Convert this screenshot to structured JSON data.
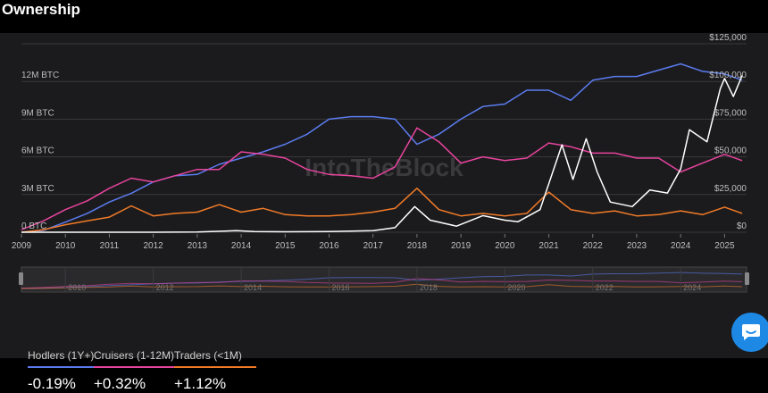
{
  "header": {
    "title": "Ownership"
  },
  "watermark": "IntoTheBlock",
  "legend": [
    {
      "label": "Hodlers (1Y+)",
      "change": "-0.19%",
      "color": "#5b7cf0"
    },
    {
      "label": "Cruisers (1-12M)",
      "change": "+0.32%",
      "color": "#e8449e"
    },
    {
      "label": "Traders (<1M)",
      "change": "+1.12%",
      "color": "#f27b28"
    }
  ],
  "chart_data": {
    "type": "line",
    "x_ticks": [
      "2009",
      "2010",
      "2011",
      "2012",
      "2013",
      "2014",
      "2015",
      "2016",
      "2017",
      "2018",
      "2019",
      "2020",
      "2021",
      "2022",
      "2023",
      "2024",
      "2025"
    ],
    "navigator_ticks": [
      "2010",
      "2012",
      "2014",
      "2016",
      "2018",
      "2020",
      "2022",
      "2024"
    ],
    "y_left_ticks": [
      "0 BTC",
      "3M BTC",
      "6M BTC",
      "9M BTC",
      "12M BTC"
    ],
    "y_right_ticks": [
      "$0",
      "$25,000",
      "$50,000",
      "$75,000",
      "$100,000",
      "$125,000"
    ],
    "y_left_range": [
      0,
      15000000
    ],
    "y_right_range": [
      0,
      125000
    ],
    "x_range": [
      2009,
      2025.5
    ],
    "grid": true,
    "series": [
      {
        "name": "Hodlers (1Y+)",
        "color": "#5b7cf0",
        "axis": "left",
        "x": [
          2009,
          2009.5,
          2010,
          2010.5,
          2011,
          2011.5,
          2012,
          2012.5,
          2013,
          2013.5,
          2014,
          2014.5,
          2015,
          2015.5,
          2016,
          2016.5,
          2017,
          2017.5,
          2018,
          2018.5,
          2019,
          2019.5,
          2020,
          2020.5,
          2021,
          2021.5,
          2022,
          2022.5,
          2023,
          2023.5,
          2024,
          2024.5,
          2025,
          2025.4
        ],
        "y": [
          0,
          150000,
          800000,
          1500000,
          2400000,
          3100000,
          4000000,
          4500000,
          4600000,
          5400000,
          5900000,
          6400000,
          7000000,
          7800000,
          9000000,
          9200000,
          9200000,
          9000000,
          7000000,
          7800000,
          9000000,
          10000000,
          10200000,
          11300000,
          11300000,
          10500000,
          12100000,
          12400000,
          12400000,
          12900000,
          13400000,
          12800000,
          12600000,
          12100000
        ]
      },
      {
        "name": "Cruisers (1-12M)",
        "color": "#e8449e",
        "axis": "left",
        "x": [
          2009,
          2009.5,
          2010,
          2010.5,
          2011,
          2011.5,
          2012,
          2012.5,
          2013,
          2013.5,
          2014,
          2014.5,
          2015,
          2015.5,
          2016,
          2016.5,
          2017,
          2017.5,
          2018,
          2018.5,
          2019,
          2019.5,
          2020,
          2020.5,
          2021,
          2021.5,
          2022,
          2022.5,
          2023,
          2023.5,
          2024,
          2024.5,
          2025,
          2025.4
        ],
        "y": [
          200000,
          900000,
          1800000,
          2500000,
          3500000,
          4300000,
          4000000,
          4500000,
          5000000,
          5000000,
          6400000,
          6200000,
          5900000,
          5000000,
          4600000,
          4500000,
          4300000,
          5200000,
          8300000,
          7200000,
          5500000,
          6000000,
          5700000,
          5900000,
          7100000,
          6800000,
          6300000,
          6300000,
          5900000,
          5900000,
          4800000,
          5500000,
          6200000,
          5700000
        ]
      },
      {
        "name": "Traders (<1M)",
        "color": "#f27b28",
        "axis": "left",
        "x": [
          2009,
          2009.5,
          2010,
          2010.5,
          2011,
          2011.5,
          2012,
          2012.5,
          2013,
          2013.5,
          2014,
          2014.5,
          2015,
          2015.5,
          2016,
          2016.5,
          2017,
          2017.5,
          2018,
          2018.5,
          2019,
          2019.5,
          2020,
          2020.5,
          2021,
          2021.5,
          2022,
          2022.5,
          2023,
          2023.5,
          2024,
          2024.5,
          2025,
          2025.4
        ],
        "y": [
          0,
          200000,
          600000,
          900000,
          1200000,
          2100000,
          1300000,
          1500000,
          1600000,
          2200000,
          1600000,
          1900000,
          1400000,
          1300000,
          1300000,
          1400000,
          1600000,
          1900000,
          3500000,
          1800000,
          1300000,
          1500000,
          1300000,
          1500000,
          3200000,
          1800000,
          1500000,
          1700000,
          1300000,
          1400000,
          1700000,
          1400000,
          2000000,
          1500000
        ]
      },
      {
        "name": "Price",
        "color": "#ffffff",
        "axis": "right",
        "x": [
          2009,
          2010,
          2011,
          2012,
          2013,
          2013.9,
          2014.3,
          2015,
          2016,
          2017,
          2017.5,
          2017.95,
          2018.3,
          2018.9,
          2019.5,
          2020,
          2020.3,
          2020.8,
          2021.3,
          2021.55,
          2021.85,
          2022.1,
          2022.4,
          2022.9,
          2023.3,
          2023.7,
          2024,
          2024.2,
          2024.6,
          2024.9,
          2025,
          2025.2,
          2025.4
        ],
        "y": [
          0,
          0,
          10,
          10,
          100,
          1000,
          500,
          300,
          400,
          1000,
          3000,
          17000,
          8000,
          4000,
          11000,
          8000,
          7000,
          15000,
          58000,
          35000,
          62000,
          40000,
          20000,
          17000,
          28000,
          26000,
          42000,
          68000,
          60000,
          95000,
          102000,
          90000,
          104000
        ]
      }
    ]
  }
}
